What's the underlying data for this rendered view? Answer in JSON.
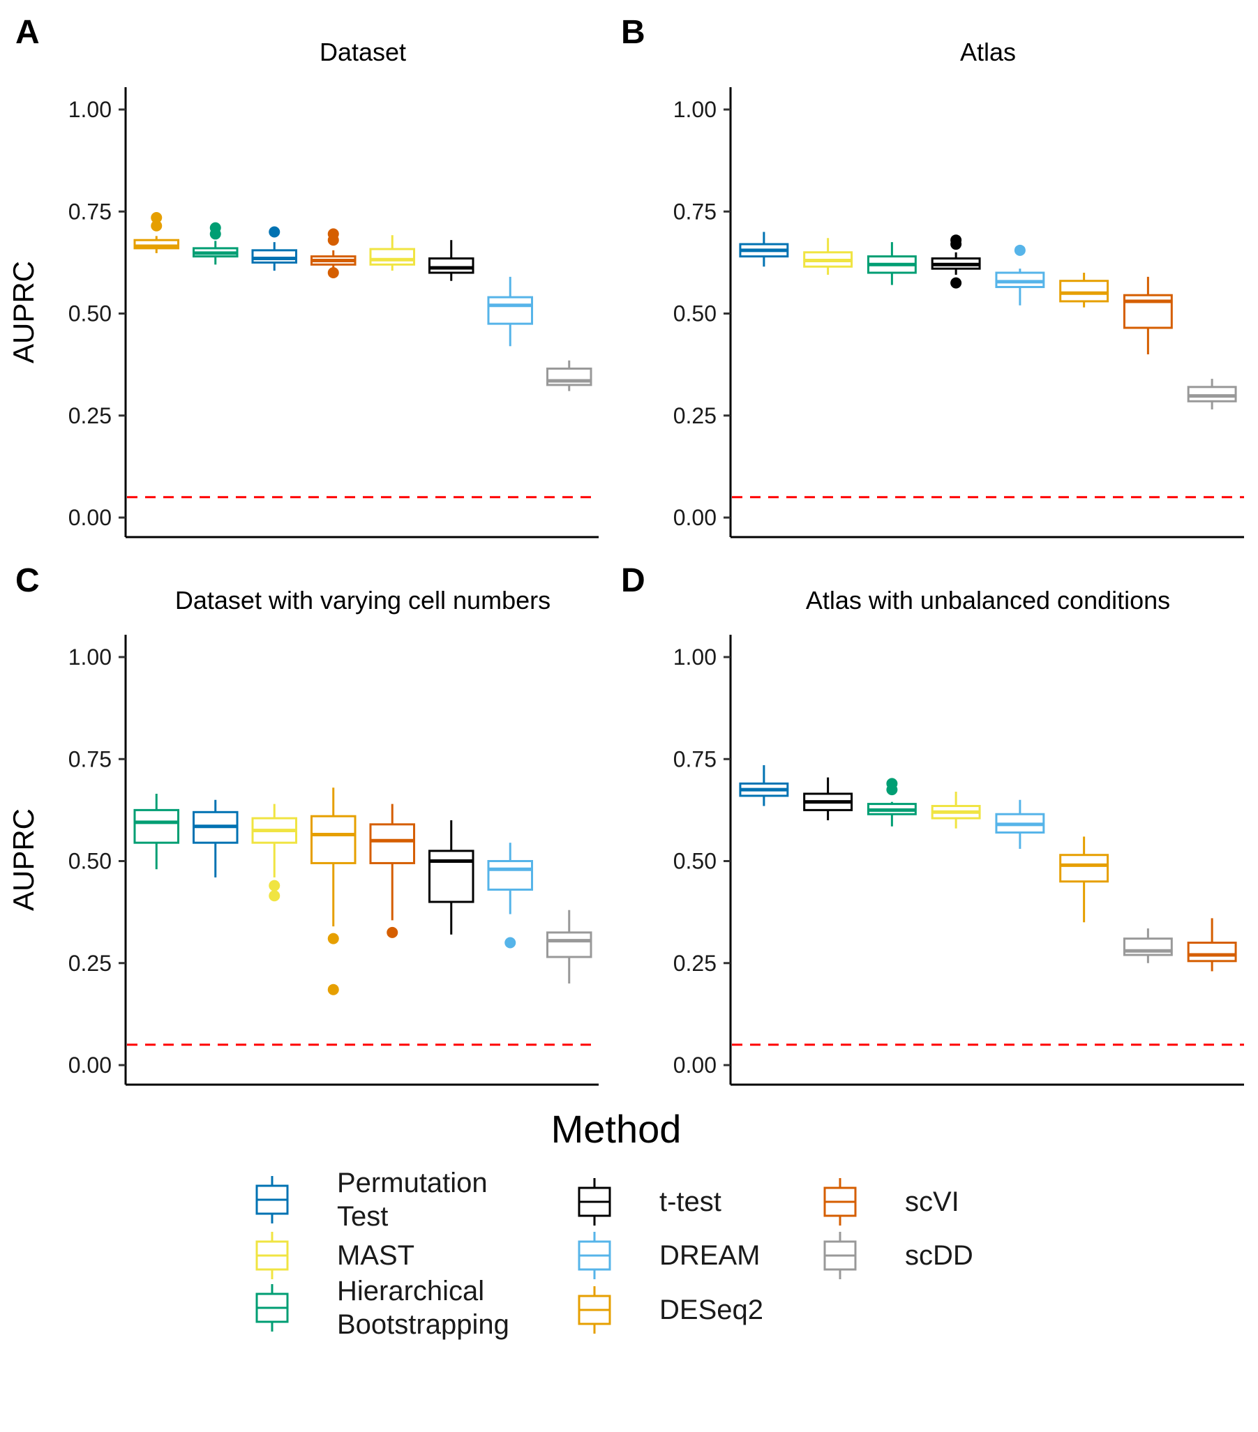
{
  "legend_title": "Method",
  "y_label": "AUPRC",
  "methods": [
    {
      "key": "perm",
      "name": "Permutation Test",
      "lines": [
        "Permutation",
        "Test"
      ],
      "color": "#0072B2"
    },
    {
      "key": "mast",
      "name": "MAST",
      "lines": [
        "MAST"
      ],
      "color": "#F0E442"
    },
    {
      "key": "hb",
      "name": "Hierarchical Bootstrapping",
      "lines": [
        "Hierarchical",
        "Bootstrapping"
      ],
      "color": "#009E73"
    },
    {
      "key": "ttest",
      "name": "t-test",
      "lines": [
        "t-test"
      ],
      "color": "#000000"
    },
    {
      "key": "dream",
      "name": "DREAM",
      "lines": [
        "DREAM"
      ],
      "color": "#56B4E9"
    },
    {
      "key": "deseq",
      "name": "DESeq2",
      "lines": [
        "DESeq2"
      ],
      "color": "#E69F00"
    },
    {
      "key": "scvi",
      "name": "scVI",
      "lines": [
        "scVI"
      ],
      "color": "#D55E00"
    },
    {
      "key": "scdd",
      "name": "scDD",
      "lines": [
        "scDD"
      ],
      "color": "#999999"
    }
  ],
  "chart_data": [
    {
      "type": "box",
      "panel_label": "A",
      "title": "Dataset",
      "ylabel": "AUPRC",
      "ylim": [
        0,
        1.05
      ],
      "y_ticks": [
        "0.00",
        "0.25",
        "0.50",
        "0.75",
        "1.00"
      ],
      "reference_line": 0.05,
      "boxes": [
        {
          "method": "deseq",
          "min": 0.648,
          "q1": 0.66,
          "median": 0.665,
          "q3": 0.68,
          "max": 0.69,
          "outliers": [
            0.715,
            0.735
          ]
        },
        {
          "method": "hb",
          "min": 0.62,
          "q1": 0.64,
          "median": 0.648,
          "q3": 0.66,
          "max": 0.678,
          "outliers": [
            0.695,
            0.71
          ]
        },
        {
          "method": "perm",
          "min": 0.605,
          "q1": 0.625,
          "median": 0.635,
          "q3": 0.655,
          "max": 0.675,
          "outliers": [
            0.7
          ]
        },
        {
          "method": "scvi",
          "min": 0.61,
          "q1": 0.62,
          "median": 0.63,
          "q3": 0.64,
          "max": 0.655,
          "outliers": [
            0.6,
            0.68,
            0.695
          ]
        },
        {
          "method": "mast",
          "min": 0.605,
          "q1": 0.62,
          "median": 0.632,
          "q3": 0.658,
          "max": 0.692,
          "outliers": []
        },
        {
          "method": "ttest",
          "min": 0.58,
          "q1": 0.6,
          "median": 0.612,
          "q3": 0.635,
          "max": 0.68,
          "outliers": []
        },
        {
          "method": "dream",
          "min": 0.42,
          "q1": 0.475,
          "median": 0.52,
          "q3": 0.54,
          "max": 0.59,
          "outliers": []
        },
        {
          "method": "scdd",
          "min": 0.31,
          "q1": 0.325,
          "median": 0.335,
          "q3": 0.365,
          "max": 0.385,
          "outliers": []
        }
      ]
    },
    {
      "type": "box",
      "panel_label": "B",
      "title": "Atlas",
      "ylabel": "",
      "ylim": [
        0,
        1.05
      ],
      "y_ticks": [
        "0.00",
        "0.25",
        "0.50",
        "0.75",
        "1.00"
      ],
      "reference_line": 0.05,
      "boxes": [
        {
          "method": "perm",
          "min": 0.615,
          "q1": 0.64,
          "median": 0.655,
          "q3": 0.67,
          "max": 0.7,
          "outliers": []
        },
        {
          "method": "mast",
          "min": 0.595,
          "q1": 0.615,
          "median": 0.63,
          "q3": 0.65,
          "max": 0.685,
          "outliers": []
        },
        {
          "method": "hb",
          "min": 0.57,
          "q1": 0.6,
          "median": 0.62,
          "q3": 0.64,
          "max": 0.675,
          "outliers": []
        },
        {
          "method": "ttest",
          "min": 0.595,
          "q1": 0.61,
          "median": 0.62,
          "q3": 0.635,
          "max": 0.65,
          "outliers": [
            0.575,
            0.67,
            0.68
          ]
        },
        {
          "method": "dream",
          "min": 0.52,
          "q1": 0.565,
          "median": 0.578,
          "q3": 0.6,
          "max": 0.61,
          "outliers": [
            0.655
          ]
        },
        {
          "method": "deseq",
          "min": 0.515,
          "q1": 0.53,
          "median": 0.55,
          "q3": 0.58,
          "max": 0.6,
          "outliers": []
        },
        {
          "method": "scvi",
          "min": 0.4,
          "q1": 0.465,
          "median": 0.53,
          "q3": 0.545,
          "max": 0.59,
          "outliers": []
        },
        {
          "method": "scdd",
          "min": 0.265,
          "q1": 0.285,
          "median": 0.298,
          "q3": 0.32,
          "max": 0.34,
          "outliers": []
        }
      ]
    },
    {
      "type": "box",
      "panel_label": "C",
      "title": "Dataset with varying cell numbers",
      "ylabel": "AUPRC",
      "ylim": [
        0,
        1.05
      ],
      "y_ticks": [
        "0.00",
        "0.25",
        "0.50",
        "0.75",
        "1.00"
      ],
      "reference_line": 0.05,
      "boxes": [
        {
          "method": "hb",
          "min": 0.48,
          "q1": 0.545,
          "median": 0.595,
          "q3": 0.625,
          "max": 0.665,
          "outliers": []
        },
        {
          "method": "perm",
          "min": 0.46,
          "q1": 0.545,
          "median": 0.585,
          "q3": 0.62,
          "max": 0.65,
          "outliers": []
        },
        {
          "method": "mast",
          "min": 0.46,
          "q1": 0.545,
          "median": 0.575,
          "q3": 0.605,
          "max": 0.64,
          "outliers": [
            0.415,
            0.44
          ]
        },
        {
          "method": "deseq",
          "min": 0.34,
          "q1": 0.495,
          "median": 0.565,
          "q3": 0.61,
          "max": 0.68,
          "outliers": [
            0.185,
            0.31
          ]
        },
        {
          "method": "scvi",
          "min": 0.355,
          "q1": 0.495,
          "median": 0.55,
          "q3": 0.59,
          "max": 0.64,
          "outliers": [
            0.325
          ]
        },
        {
          "method": "ttest",
          "min": 0.32,
          "q1": 0.4,
          "median": 0.5,
          "q3": 0.525,
          "max": 0.6,
          "outliers": []
        },
        {
          "method": "dream",
          "min": 0.37,
          "q1": 0.43,
          "median": 0.48,
          "q3": 0.5,
          "max": 0.545,
          "outliers": [
            0.3
          ]
        },
        {
          "method": "scdd",
          "min": 0.2,
          "q1": 0.265,
          "median": 0.305,
          "q3": 0.325,
          "max": 0.38,
          "outliers": []
        }
      ]
    },
    {
      "type": "box",
      "panel_label": "D",
      "title": "Atlas with unbalanced conditions",
      "ylabel": "",
      "ylim": [
        0,
        1.05
      ],
      "y_ticks": [
        "0.00",
        "0.25",
        "0.50",
        "0.75",
        "1.00"
      ],
      "reference_line": 0.05,
      "boxes": [
        {
          "method": "perm",
          "min": 0.635,
          "q1": 0.66,
          "median": 0.675,
          "q3": 0.69,
          "max": 0.735,
          "outliers": []
        },
        {
          "method": "ttest",
          "min": 0.6,
          "q1": 0.625,
          "median": 0.645,
          "q3": 0.665,
          "max": 0.705,
          "outliers": []
        },
        {
          "method": "hb",
          "min": 0.585,
          "q1": 0.615,
          "median": 0.625,
          "q3": 0.64,
          "max": 0.645,
          "outliers": [
            0.675,
            0.69
          ]
        },
        {
          "method": "mast",
          "min": 0.58,
          "q1": 0.605,
          "median": 0.62,
          "q3": 0.635,
          "max": 0.67,
          "outliers": []
        },
        {
          "method": "dream",
          "min": 0.53,
          "q1": 0.57,
          "median": 0.59,
          "q3": 0.615,
          "max": 0.65,
          "outliers": []
        },
        {
          "method": "deseq",
          "min": 0.35,
          "q1": 0.45,
          "median": 0.49,
          "q3": 0.515,
          "max": 0.56,
          "outliers": []
        },
        {
          "method": "scdd",
          "min": 0.25,
          "q1": 0.27,
          "median": 0.28,
          "q3": 0.31,
          "max": 0.335,
          "outliers": []
        },
        {
          "method": "scvi",
          "min": 0.23,
          "q1": 0.255,
          "median": 0.27,
          "q3": 0.3,
          "max": 0.36,
          "outliers": []
        }
      ]
    }
  ]
}
